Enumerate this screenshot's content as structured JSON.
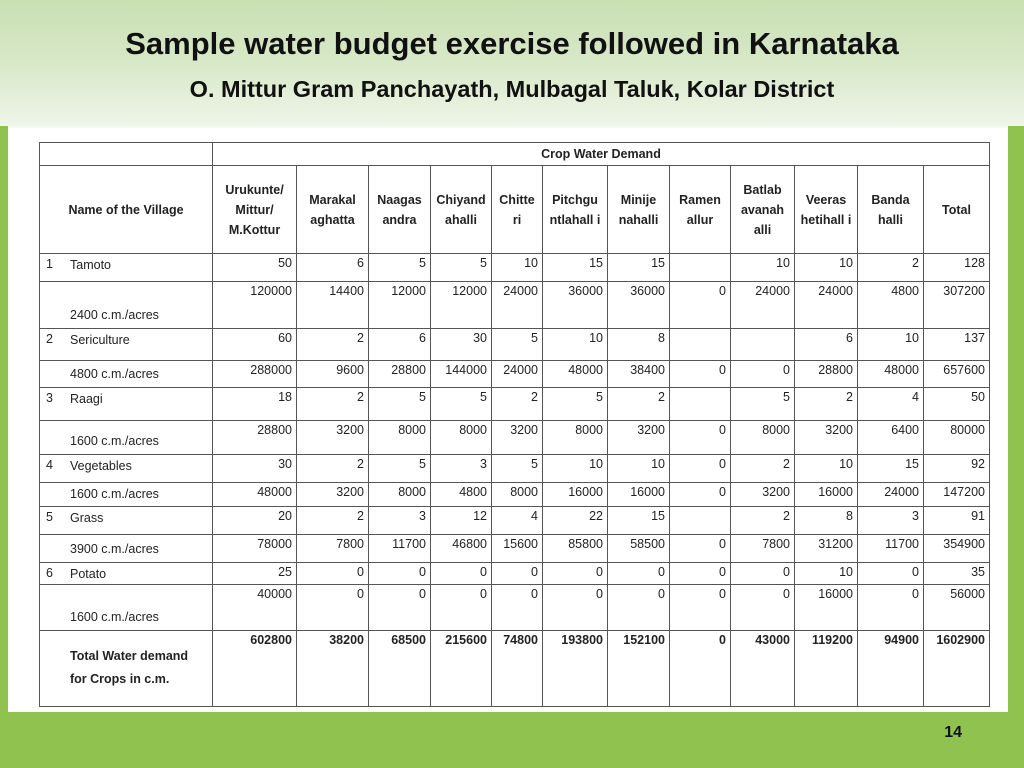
{
  "slide": {
    "title": "Sample water budget exercise followed in Karnataka",
    "subtitle": "O. Mittur Gram Panchayath, Mulbagal Taluk, Kolar District",
    "page_number": "14"
  },
  "table": {
    "caption": "Crop Water Demand",
    "name_header": "Name of the Village",
    "columns": [
      "Urukunte/ Mittur/ M.Kottur",
      "Marakal aghatta",
      "Naagas andra",
      "Chiyand ahalli",
      "Chitte ri",
      "Pitchgu ntlahall i",
      "Minije nahalli",
      "Ramen allur",
      "Batlab avanah alli",
      "Veeras hetihall i",
      "Banda halli",
      "Total"
    ],
    "rows": [
      {
        "idx": "1",
        "label": "Tamoto",
        "values": [
          "50",
          "6",
          "5",
          "5",
          "10",
          "15",
          "15",
          "",
          "10",
          "10",
          "2",
          "128"
        ]
      },
      {
        "idx": "",
        "label": "2400 c.m./acres",
        "values": [
          "120000",
          "14400",
          "12000",
          "12000",
          "24000",
          "36000",
          "36000",
          "0",
          "24000",
          "24000",
          "4800",
          "307200"
        ]
      },
      {
        "idx": "2",
        "label": "Sericulture",
        "values": [
          "60",
          "2",
          "6",
          "30",
          "5",
          "10",
          "8",
          "",
          "",
          "6",
          "10",
          "137"
        ]
      },
      {
        "idx": "",
        "label": "4800 c.m./acres",
        "values": [
          "288000",
          "9600",
          "28800",
          "144000",
          "24000",
          "48000",
          "38400",
          "0",
          "0",
          "28800",
          "48000",
          "657600"
        ]
      },
      {
        "idx": "3",
        "label": "Raagi",
        "values": [
          "18",
          "2",
          "5",
          "5",
          "2",
          "5",
          "2",
          "",
          "5",
          "2",
          "4",
          "50"
        ]
      },
      {
        "idx": "",
        "label": "1600 c.m./acres",
        "values": [
          "28800",
          "3200",
          "8000",
          "8000",
          "3200",
          "8000",
          "3200",
          "0",
          "8000",
          "3200",
          "6400",
          "80000"
        ]
      },
      {
        "idx": "4",
        "label": "Vegetables",
        "values": [
          "30",
          "2",
          "5",
          "3",
          "5",
          "10",
          "10",
          "0",
          "2",
          "10",
          "15",
          "92"
        ]
      },
      {
        "idx": "",
        "label": "1600 c.m./acres",
        "values": [
          "48000",
          "3200",
          "8000",
          "4800",
          "8000",
          "16000",
          "16000",
          "0",
          "3200",
          "16000",
          "24000",
          "147200"
        ]
      },
      {
        "idx": "5",
        "label": "Grass",
        "values": [
          "20",
          "2",
          "3",
          "12",
          "4",
          "22",
          "15",
          "",
          "2",
          "8",
          "3",
          "91"
        ]
      },
      {
        "idx": "",
        "label": "3900 c.m./acres",
        "values": [
          "78000",
          "7800",
          "11700",
          "46800",
          "15600",
          "85800",
          "58500",
          "0",
          "7800",
          "31200",
          "11700",
          "354900"
        ]
      },
      {
        "idx": "6",
        "label": "Potato",
        "values": [
          "25",
          "0",
          "0",
          "0",
          "0",
          "0",
          "0",
          "0",
          "0",
          "10",
          "0",
          "35"
        ]
      },
      {
        "idx": "",
        "label": "1600 c.m./acres",
        "values": [
          "40000",
          "0",
          "0",
          "0",
          "0",
          "0",
          "0",
          "0",
          "0",
          "16000",
          "0",
          "56000"
        ]
      }
    ],
    "total_label_1": "Total Water demand",
    "total_label_2": "for Crops in c.m.",
    "totals": [
      "602800",
      "38200",
      "68500",
      "215600",
      "74800",
      "193800",
      "152100",
      "0",
      "43000",
      "119200",
      "94900",
      "1602900"
    ]
  }
}
